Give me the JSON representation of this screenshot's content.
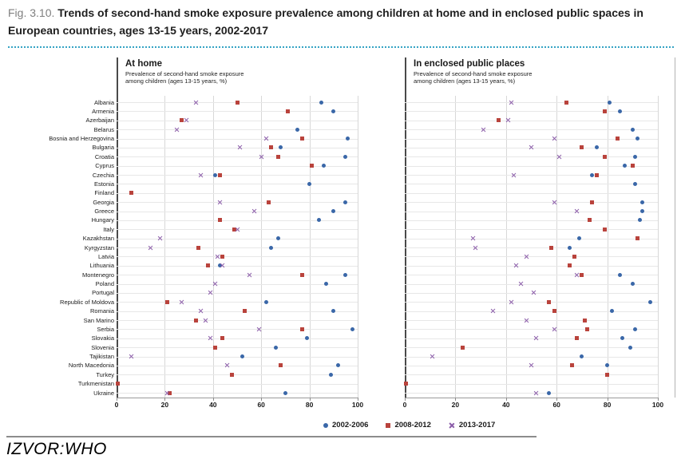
{
  "figure": {
    "label": "Fig. 3.10.",
    "title": "Trends of second-hand smoke exposure prevalence among children at home and in enclosed public spaces in European countries, ages 13-15 years, 2002-2017"
  },
  "footer": {
    "source": "IZVOR:WHO"
  },
  "colors": {
    "series_2002_2006": "#3a67a8",
    "series_2008_2012": "#b9433c",
    "series_2013_2017": "#8a5ba8",
    "dotted_rule": "#35a3c4"
  },
  "legend": [
    {
      "label": "2002-2006",
      "marker": "circle"
    },
    {
      "label": "2008-2012",
      "marker": "square"
    },
    {
      "label": "2013-2017",
      "marker": "x"
    }
  ],
  "chart_data": {
    "type": "scatter",
    "orientation": "horizontal-dot-plot",
    "xlim": [
      0,
      100
    ],
    "x_ticks": [
      0,
      20,
      40,
      60,
      80,
      100
    ],
    "grid": "vertical-and-row-lines",
    "legend_position": "bottom",
    "series": [
      "2002-2006",
      "2008-2012",
      "2013-2017"
    ],
    "panels": [
      {
        "id": "home",
        "title": "At home",
        "subtitle_lines": [
          "Prevalence of second-hand smoke exposure",
          "among children (ages 13-15 years, %)"
        ]
      },
      {
        "id": "public",
        "title": "In enclosed public places",
        "subtitle_lines": [
          "Prevalence of second-hand smoke exposure",
          "among children (ages 13-15 years, %)"
        ]
      }
    ],
    "value_note": "values are [2002-2006, 2008-2012, 2013-2017], null = not shown",
    "countries": [
      {
        "name": "Albania",
        "home": [
          85,
          50,
          33
        ],
        "public": [
          81,
          64,
          42
        ]
      },
      {
        "name": "Armenia",
        "home": [
          90,
          71,
          null
        ],
        "public": [
          85,
          79,
          null
        ]
      },
      {
        "name": "Azerbaijan",
        "home": [
          null,
          27,
          29
        ],
        "public": [
          null,
          37,
          41
        ]
      },
      {
        "name": "Belarus",
        "home": [
          75,
          null,
          25
        ],
        "public": [
          90,
          null,
          31
        ]
      },
      {
        "name": "Bosnia and Herzegovina",
        "home": [
          96,
          77,
          62
        ],
        "public": [
          92,
          84,
          59
        ]
      },
      {
        "name": "Bulgaria",
        "home": [
          68,
          64,
          51
        ],
        "public": [
          76,
          70,
          50
        ]
      },
      {
        "name": "Croatia",
        "home": [
          95,
          67,
          60
        ],
        "public": [
          91,
          79,
          61
        ]
      },
      {
        "name": "Cyprus",
        "home": [
          86,
          81,
          null
        ],
        "public": [
          87,
          90,
          null
        ]
      },
      {
        "name": "Czechia",
        "home": [
          41,
          43,
          35
        ],
        "public": [
          74,
          76,
          43
        ]
      },
      {
        "name": "Estonia",
        "home": [
          80,
          null,
          null
        ],
        "public": [
          91,
          null,
          null
        ]
      },
      {
        "name": "Finland",
        "home": [
          null,
          6,
          null
        ],
        "public": [
          null,
          null,
          null
        ]
      },
      {
        "name": "Georgia",
        "home": [
          95,
          63,
          43
        ],
        "public": [
          94,
          74,
          59
        ]
      },
      {
        "name": "Greece",
        "home": [
          90,
          null,
          57
        ],
        "public": [
          94,
          null,
          68
        ]
      },
      {
        "name": "Hungary",
        "home": [
          84,
          43,
          null
        ],
        "public": [
          93,
          73,
          null
        ]
      },
      {
        "name": "Italy",
        "home": [
          null,
          49,
          50
        ],
        "public": [
          null,
          79,
          null
        ]
      },
      {
        "name": "Kazakhstan",
        "home": [
          67,
          null,
          18
        ],
        "public": [
          69,
          92,
          27
        ]
      },
      {
        "name": "Kyrgyzstan",
        "home": [
          64,
          34,
          14
        ],
        "public": [
          65,
          58,
          28
        ]
      },
      {
        "name": "Latvia",
        "home": [
          null,
          44,
          42
        ],
        "public": [
          null,
          67,
          48
        ]
      },
      {
        "name": "Lithuania",
        "home": [
          43,
          38,
          44
        ],
        "public": [
          null,
          65,
          44
        ]
      },
      {
        "name": "Montenegro",
        "home": [
          95,
          77,
          55
        ],
        "public": [
          85,
          70,
          68
        ]
      },
      {
        "name": "Poland",
        "home": [
          87,
          null,
          41
        ],
        "public": [
          90,
          null,
          46
        ]
      },
      {
        "name": "Portugal",
        "home": [
          null,
          null,
          39
        ],
        "public": [
          null,
          null,
          51
        ]
      },
      {
        "name": "Republic of Moldova",
        "home": [
          62,
          21,
          27
        ],
        "public": [
          97,
          57,
          42
        ]
      },
      {
        "name": "Romania",
        "home": [
          90,
          53,
          35
        ],
        "public": [
          82,
          59,
          35
        ]
      },
      {
        "name": "San Marino",
        "home": [
          null,
          33,
          37
        ],
        "public": [
          null,
          71,
          48
        ]
      },
      {
        "name": "Serbia",
        "home": [
          98,
          77,
          59
        ],
        "public": [
          91,
          72,
          59
        ]
      },
      {
        "name": "Slovakia",
        "home": [
          79,
          44,
          39
        ],
        "public": [
          86,
          68,
          52
        ]
      },
      {
        "name": "Slovenia",
        "home": [
          66,
          41,
          null
        ],
        "public": [
          89,
          23,
          null
        ]
      },
      {
        "name": "Tajikistan",
        "home": [
          52,
          null,
          6
        ],
        "public": [
          70,
          null,
          11
        ]
      },
      {
        "name": "North Macedonia",
        "home": [
          92,
          68,
          46
        ],
        "public": [
          80,
          66,
          50
        ]
      },
      {
        "name": "Turkey",
        "home": [
          89,
          48,
          null
        ],
        "public": [
          null,
          80,
          null
        ]
      },
      {
        "name": "Turkmenistan",
        "home": [
          null,
          0.5,
          null
        ],
        "public": [
          null,
          0.5,
          null
        ]
      },
      {
        "name": "Ukraine",
        "home": [
          70,
          22,
          21
        ],
        "public": [
          57,
          null,
          52
        ]
      }
    ]
  }
}
